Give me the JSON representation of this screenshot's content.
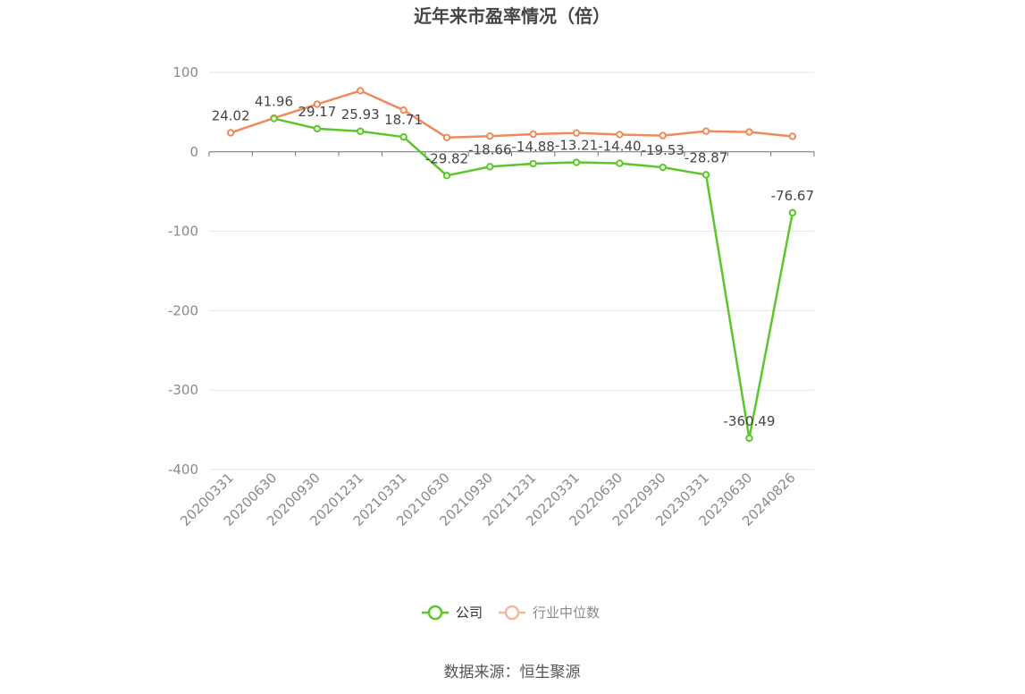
{
  "chart_data": {
    "type": "line",
    "title": "近年来市盈率情况（倍）",
    "categories": [
      "20200331",
      "20200630",
      "20200930",
      "20201231",
      "20210331",
      "20210630",
      "20210930",
      "20211231",
      "20220331",
      "20220630",
      "20220930",
      "20230331",
      "20230630",
      "20240826"
    ],
    "ylim": [
      -400,
      100
    ],
    "yticks": [
      100,
      0,
      -100,
      -200,
      -300,
      -400
    ],
    "grid": true,
    "legend_position": "bottom",
    "series": [
      {
        "name": "公司",
        "color": "#5bc72a",
        "values": [
          null,
          41.96,
          29.17,
          25.93,
          18.71,
          -29.82,
          -18.66,
          -14.88,
          -13.21,
          -14.4,
          -19.53,
          -28.87,
          -360.49,
          -76.67
        ],
        "labels": [
          "",
          "41.96",
          "29.17",
          "25.93",
          "18.71",
          "-29.82",
          "-18.66",
          "-14.88",
          "-13.21",
          "-14.40",
          "-19.53",
          "-28.87",
          "-360.49",
          "-76.67"
        ]
      },
      {
        "name": "行业中位数",
        "color": "#ef8a5a",
        "legend_color": "#f4b89c",
        "values": [
          24.02,
          42.5,
          60.0,
          77.0,
          52.5,
          18.0,
          19.8,
          22.3,
          23.8,
          21.8,
          20.5,
          26.0,
          25.0,
          19.5
        ],
        "labels": [
          "24.02",
          "",
          "",
          "",
          "",
          "",
          "",
          "",
          "",
          "",
          "",
          "",
          "",
          ""
        ]
      }
    ]
  },
  "source_text": "数据来源：恒生聚源"
}
